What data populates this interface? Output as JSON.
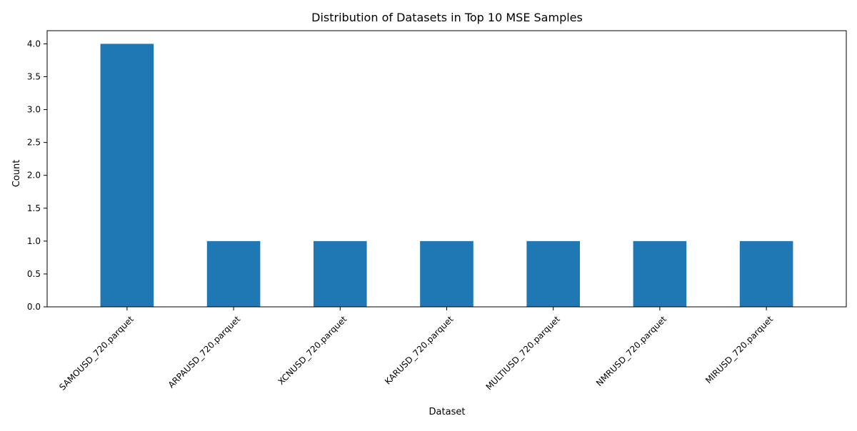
{
  "chart_data": {
    "type": "bar",
    "title": "Distribution of Datasets in Top 10 MSE Samples",
    "xlabel": "Dataset",
    "ylabel": "Count",
    "categories": [
      "SAMOUSD_720.parquet",
      "ARPAUSD_720.parquet",
      "XCNUSD_720.parquet",
      "KARUSD_720.parquet",
      "MULTIUSD_720.parquet",
      "NMRUSD_720.parquet",
      "MIRUSD_720.parquet"
    ],
    "values": [
      4,
      1,
      1,
      1,
      1,
      1,
      1
    ],
    "ylim": [
      0,
      4.2
    ],
    "yticks": [
      "0.0",
      "0.5",
      "1.0",
      "1.5",
      "2.0",
      "2.5",
      "3.0",
      "3.5",
      "4.0"
    ],
    "grid": false,
    "bar_color": "#1f77b4"
  }
}
